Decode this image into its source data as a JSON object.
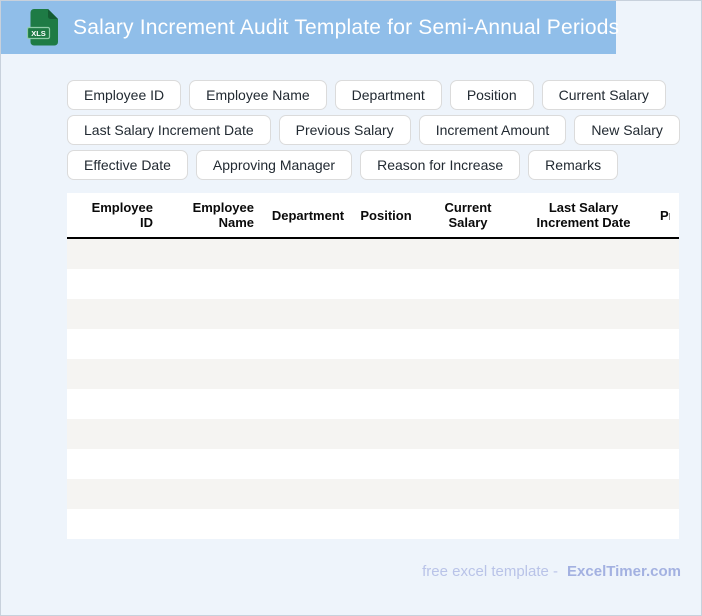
{
  "header": {
    "title": "Salary Increment Audit Template for Semi-Annual Periods",
    "file_badge": "XLS"
  },
  "chips": {
    "rows": [
      [
        "Employee ID",
        "Employee Name",
        "Department",
        "Position",
        "Current Salary"
      ],
      [
        "Last Salary Increment Date",
        "Previous Salary",
        "Increment Amount",
        "New Salary"
      ],
      [
        "Effective Date",
        "Approving Manager",
        "Reason for Increase",
        "Remarks"
      ]
    ]
  },
  "table": {
    "columns": [
      {
        "line1": "Employee",
        "line2": "ID"
      },
      {
        "line1": "Employee",
        "line2": "Name"
      },
      {
        "line1": "Department",
        "line2": ""
      },
      {
        "line1": "Position",
        "line2": ""
      },
      {
        "line1": "Current",
        "line2": "Salary"
      },
      {
        "line1": "Last Salary",
        "line2": "Increment Date"
      },
      {
        "line1": "Previous Salary",
        "line2": ""
      }
    ],
    "visible_rows": 10
  },
  "footer": {
    "tagline": "free excel template -",
    "brand": "ExcelTimer.com"
  },
  "colors": {
    "header_bar": "#90BEE9",
    "page_bg": "#EEF4FB",
    "page_border": "#C8D1DC",
    "row_stripe": "#F5F4F2",
    "header_rule": "#000000",
    "icon_green": "#1E7B45",
    "icon_fold_green": "#145C32",
    "badge_border": "#8FCCA8",
    "chip_border": "#DBDBDB",
    "chip_text": "#222A32",
    "footer_tagline": "#B9C3E8",
    "footer_brand": "#A3B1E1",
    "title_text": "#FFFFFF"
  }
}
